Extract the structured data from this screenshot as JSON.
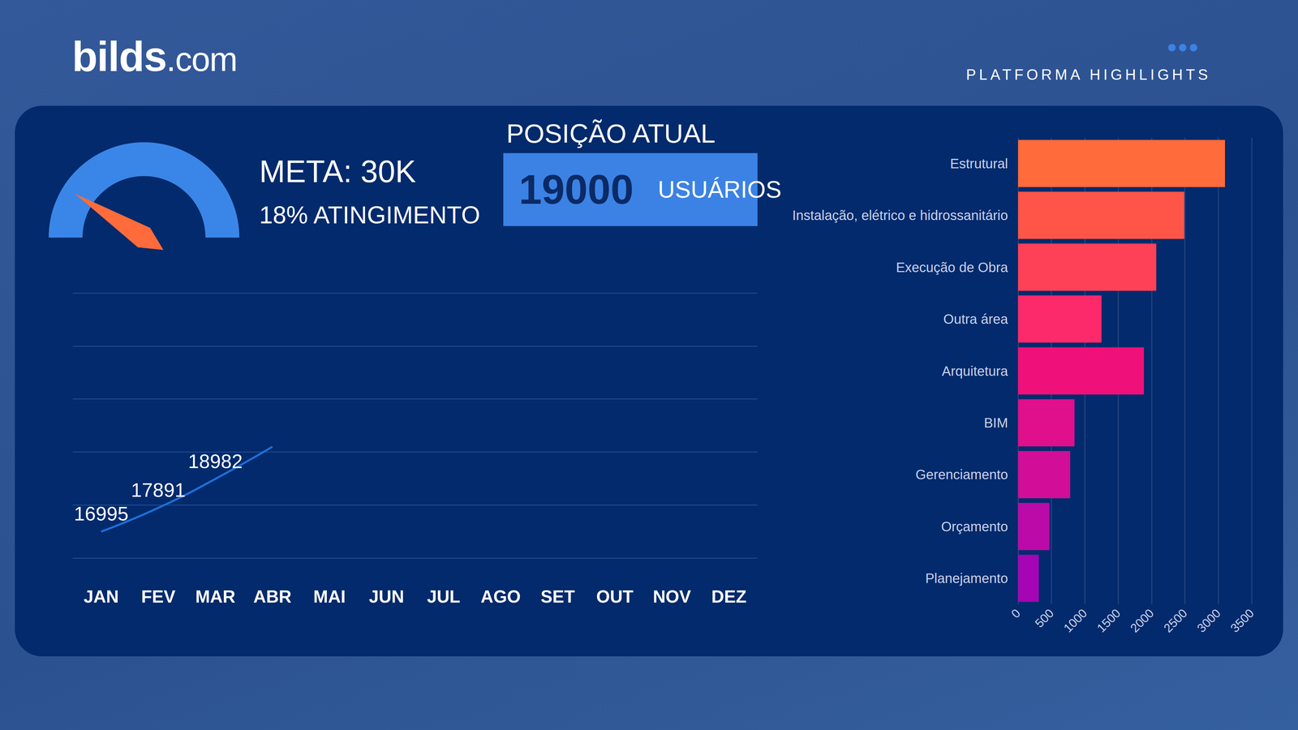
{
  "page": {
    "brand": "bilds.com",
    "section": "PLATFORMA HIGHLIGHTS"
  },
  "kpi": {
    "title": "POSIÇÃO ATUAL",
    "value": 19000,
    "unit": "USUÁRIOS"
  },
  "chart_data": [
    {
      "type": "gauge",
      "title": "META: 30K",
      "subtitle": "18% ATINGIMENTO",
      "values": [
        18
      ],
      "ylim": [
        0,
        100
      ],
      "tick_labels": false,
      "color": "#3a86e8"
    },
    {
      "type": "line",
      "categories": [
        "JAN",
        "FEV",
        "MAR",
        "ABR",
        "MAI",
        "JUN",
        "JUL",
        "AGO",
        "SET",
        "OUT",
        "NOV",
        "DEZ"
      ],
      "values": [
        16995,
        17891,
        18982,
        20200,
        null,
        null,
        null,
        null,
        null,
        null,
        null,
        null
      ],
      "value_labels": [
        "16995",
        "17891",
        "18982",
        null,
        null,
        null,
        null,
        null,
        null,
        null,
        null,
        null
      ],
      "data_labels": true,
      "color": "#1e6fd9",
      "ylim": [
        16000,
        26000
      ],
      "yticks": [
        16000,
        18000,
        20000,
        22000,
        24000,
        26000
      ],
      "grid": true,
      "tick_labels": "x"
    },
    {
      "type": "bar",
      "orientation": "horizontal",
      "categories": [
        "Estrutural",
        "Instalação, elétrico e hidrossanitário",
        "Execução de Obra",
        "Outra área",
        "Arquitetura",
        "BIM",
        "Gerenciamento",
        "Orçamento",
        "Planejamento"
      ],
      "values": [
        3100,
        2490,
        2070,
        1250,
        1885,
        845,
        780,
        470,
        310
      ],
      "colors": [
        "#ff6b3a",
        "#ff5548",
        "#ff4158",
        "#fd2a6b",
        "#f0107a",
        "#e00f8c",
        "#d20e98",
        "#bb0aa8",
        "#a505b5"
      ],
      "xlim": [
        0,
        3500
      ],
      "xticks": [
        0,
        500,
        1000,
        1500,
        2000,
        2500,
        3000,
        3500
      ],
      "grid": true
    }
  ]
}
